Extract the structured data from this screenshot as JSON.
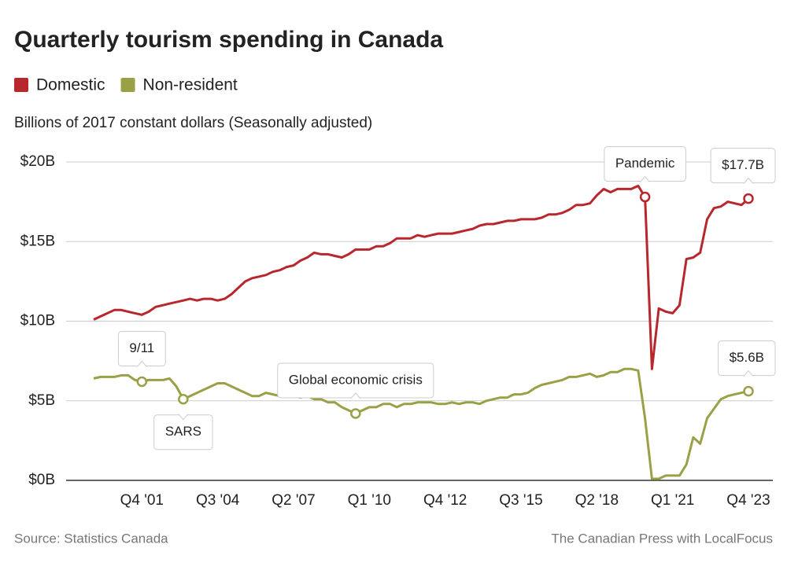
{
  "chart_data": {
    "type": "line",
    "title": "Quarterly tourism spending in Canada",
    "subtitle": "Billions of 2017 constant dollars (Seasonally adjusted)",
    "source": "Source: Statistics Canada",
    "credit": "The Canadian Press with LocalFocus",
    "categories": [
      null,
      null,
      null,
      null,
      null,
      null,
      null,
      "Q4 '01",
      null,
      null,
      null,
      null,
      null,
      null,
      null,
      null,
      null,
      null,
      "Q3 '04",
      null,
      null,
      null,
      null,
      null,
      null,
      null,
      null,
      null,
      null,
      "Q2 '07",
      null,
      null,
      null,
      null,
      null,
      null,
      null,
      null,
      null,
      null,
      "Q1 '10",
      null,
      null,
      null,
      null,
      null,
      null,
      null,
      null,
      null,
      null,
      "Q4 '12",
      null,
      null,
      null,
      null,
      null,
      null,
      null,
      null,
      null,
      null,
      "Q3 '15",
      null,
      null,
      null,
      null,
      null,
      null,
      null,
      null,
      null,
      null,
      "Q2 '18",
      null,
      null,
      null,
      null,
      null,
      null,
      null,
      null,
      null,
      null,
      "Q1 '21",
      null,
      null,
      null,
      null,
      null,
      null,
      null,
      null,
      null,
      null,
      "Q4 '23"
    ],
    "series": [
      {
        "name": "Domestic",
        "color": "#b8272c",
        "values": [
          10.1,
          10.3,
          10.5,
          10.7,
          10.7,
          10.6,
          10.5,
          10.4,
          10.6,
          10.9,
          11.0,
          11.1,
          11.2,
          11.3,
          11.4,
          11.3,
          11.4,
          11.4,
          11.3,
          11.4,
          11.7,
          12.1,
          12.5,
          12.7,
          12.8,
          12.9,
          13.1,
          13.2,
          13.4,
          13.5,
          13.8,
          14.0,
          14.3,
          14.2,
          14.2,
          14.1,
          14.0,
          14.2,
          14.5,
          14.5,
          14.5,
          14.7,
          14.7,
          14.9,
          15.2,
          15.2,
          15.2,
          15.4,
          15.3,
          15.4,
          15.5,
          15.5,
          15.5,
          15.6,
          15.7,
          15.8,
          16.0,
          16.1,
          16.1,
          16.2,
          16.3,
          16.3,
          16.4,
          16.4,
          16.4,
          16.5,
          16.7,
          16.7,
          16.8,
          17.0,
          17.3,
          17.3,
          17.4,
          17.9,
          18.3,
          18.1,
          18.3,
          18.3,
          18.3,
          18.5,
          17.8,
          7.0,
          10.8,
          10.6,
          10.5,
          11.0,
          13.9,
          14.0,
          14.3,
          16.4,
          17.1,
          17.2,
          17.5,
          17.4,
          17.3,
          17.7
        ]
      },
      {
        "name": "Non-resident",
        "color": "#9aa045",
        "values": [
          6.4,
          6.5,
          6.5,
          6.5,
          6.6,
          6.6,
          6.3,
          6.2,
          6.3,
          6.3,
          6.3,
          6.4,
          5.9,
          5.1,
          5.3,
          5.5,
          5.7,
          5.9,
          6.1,
          6.1,
          5.9,
          5.7,
          5.5,
          5.3,
          5.3,
          5.5,
          5.4,
          5.3,
          5.3,
          5.3,
          5.2,
          5.3,
          5.1,
          5.1,
          4.9,
          4.9,
          4.6,
          4.4,
          4.2,
          4.4,
          4.6,
          4.6,
          4.8,
          4.8,
          4.6,
          4.8,
          4.8,
          4.9,
          4.9,
          4.9,
          4.8,
          4.8,
          4.9,
          4.8,
          4.9,
          4.9,
          4.8,
          5.0,
          5.1,
          5.2,
          5.2,
          5.4,
          5.4,
          5.5,
          5.8,
          6.0,
          6.1,
          6.2,
          6.3,
          6.5,
          6.5,
          6.6,
          6.7,
          6.5,
          6.6,
          6.8,
          6.8,
          7.0,
          7.0,
          6.9,
          3.9,
          0.1,
          0.1,
          0.3,
          0.3,
          0.3,
          1.0,
          2.7,
          2.3,
          3.9,
          4.5,
          5.1,
          5.3,
          5.4,
          5.5,
          5.6
        ]
      }
    ],
    "annotations": [
      "9/11",
      "SARS",
      "Global economic crisis",
      "Pandemic",
      "$17.7B",
      "$5.6B"
    ],
    "ylim": [
      0,
      20
    ],
    "yticks": [
      {
        "value": 0,
        "label": "$0B"
      },
      {
        "value": 5,
        "label": "$5B"
      },
      {
        "value": 10,
        "label": "$10B"
      },
      {
        "value": 15,
        "label": "$15B"
      },
      {
        "value": 20,
        "label": "$20B"
      }
    ],
    "grid": true
  }
}
